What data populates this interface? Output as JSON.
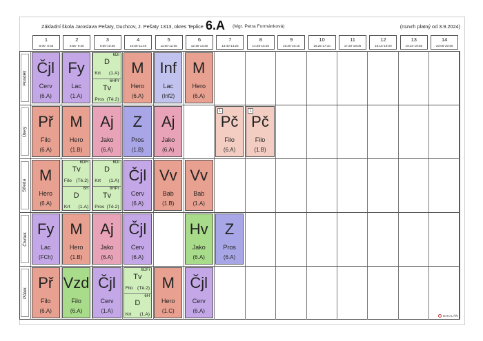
{
  "header": {
    "school": "Základní škola Jaroslava Pešaty, Duchcov, J. Pešaty 1313, okres Teplice",
    "class": "6.A",
    "teacher": "(Mgr. Petra Formánková)",
    "valid": "(rozvrh platný od 3.9.2024)"
  },
  "periods": [
    {
      "num": "1",
      "time": "8:00- 8:45"
    },
    {
      "num": "2",
      "time": "8:55- 9:40"
    },
    {
      "num": "3",
      "time": "9:50-10:35"
    },
    {
      "num": "4",
      "time": "10:55-11:40"
    },
    {
      "num": "5",
      "time": "11:50-12:35"
    },
    {
      "num": "6",
      "time": "12:45-13:30"
    },
    {
      "num": "7",
      "time": "13:40-14:25"
    },
    {
      "num": "8",
      "time": "14:35-15:20"
    },
    {
      "num": "9",
      "time": "15:30-16:15"
    },
    {
      "num": "10",
      "time": "16:25-17:10"
    },
    {
      "num": "11",
      "time": "17:20-18:05"
    },
    {
      "num": "12",
      "time": "18:15-19:00"
    },
    {
      "num": "13",
      "time": "19:10-19:55"
    },
    {
      "num": "14",
      "time": "20:05-20:50"
    }
  ],
  "days": [
    "Pondělí",
    "Úterý",
    "Středa",
    "Čtvrtek",
    "Pátek"
  ],
  "colors": {
    "Cjl": "#c4a7e7",
    "Fy": "#c4a7e7",
    "M": "#e8a090",
    "Inf": "#c2c2ee",
    "Pr": "#e8a090",
    "Aj": "#e9a3b8",
    "Z": "#a9a6e8",
    "Pc": "#f3cdc2",
    "Vv": "#e8a090",
    "Hv": "#a9dc8a",
    "Vzd": "#a9dc8a",
    "TvD": "#cfeebb"
  },
  "lessons": [
    {
      "day": 0,
      "p": 1,
      "sub": "Čjl",
      "tch": "Cerv",
      "rm": "(6.A)",
      "c": "Cjl"
    },
    {
      "day": 0,
      "p": 2,
      "sub": "Fy",
      "tch": "Lac",
      "rm": "(1.A)",
      "c": "Fy"
    },
    {
      "day": 0,
      "p": 3,
      "c": "TvD",
      "split": [
        {
          "grp": "6Di",
          "sub": "D",
          "tch": "Krt",
          "rm": "(1.A)"
        },
        {
          "grp": "6HPr",
          "sub": "Tv",
          "tch": "Pros",
          "rm": "(Tě.2)"
        }
      ]
    },
    {
      "day": 0,
      "p": 4,
      "sub": "M",
      "tch": "Hero",
      "rm": "(6.A)",
      "c": "M"
    },
    {
      "day": 0,
      "p": 5,
      "sub": "Inf",
      "tch": "Lac",
      "rm": "(Inf2)",
      "c": "Inf"
    },
    {
      "day": 0,
      "p": 6,
      "sub": "M",
      "tch": "Hero",
      "rm": "(6.A)",
      "c": "M"
    },
    {
      "day": 1,
      "p": 1,
      "sub": "Př",
      "tch": "Filo",
      "rm": "(6.A)",
      "c": "Pr"
    },
    {
      "day": 1,
      "p": 2,
      "sub": "M",
      "tch": "Hero",
      "rm": "(1.B)",
      "c": "M"
    },
    {
      "day": 1,
      "p": 3,
      "sub": "Aj",
      "tch": "Jako",
      "rm": "(6.A)",
      "c": "Aj"
    },
    {
      "day": 1,
      "p": 4,
      "sub": "Z",
      "tch": "Pros",
      "rm": "(1.B)",
      "c": "Z"
    },
    {
      "day": 1,
      "p": 5,
      "sub": "Aj",
      "tch": "Jako",
      "rm": "(6.A)",
      "c": "Aj"
    },
    {
      "day": 1,
      "p": 7,
      "sub": "Pč",
      "tch": "Filo",
      "rm": "(6.A)",
      "c": "Pc",
      "flag": "L"
    },
    {
      "day": 1,
      "p": 8,
      "sub": "Pč",
      "tch": "Filo",
      "rm": "(1.B)",
      "c": "Pc",
      "flag": "L"
    },
    {
      "day": 2,
      "p": 1,
      "sub": "M",
      "tch": "Hero",
      "rm": "(6.A)",
      "c": "M"
    },
    {
      "day": 2,
      "p": 2,
      "c": "TvD",
      "split": [
        {
          "grp": "6DFi",
          "sub": "Tv",
          "tch": "Filo",
          "rm": "(Tě.2)"
        },
        {
          "grp": "6H",
          "sub": "D",
          "tch": "Krt",
          "rm": "(1.A)"
        }
      ]
    },
    {
      "day": 2,
      "p": 3,
      "c": "TvD",
      "split": [
        {
          "grp": "6Di",
          "sub": "D",
          "tch": "Krt",
          "rm": "(1.A)"
        },
        {
          "grp": "6HPr",
          "sub": "Tv",
          "tch": "Pros",
          "rm": "(Tě.2)"
        }
      ]
    },
    {
      "day": 2,
      "p": 4,
      "sub": "Čjl",
      "tch": "Cerv",
      "rm": "(6.A)",
      "c": "Cjl"
    },
    {
      "day": 2,
      "p": 5,
      "sub": "Vv",
      "tch": "Bab",
      "rm": "(1.B)",
      "c": "Vv"
    },
    {
      "day": 2,
      "p": 6,
      "sub": "Vv",
      "tch": "Bab",
      "rm": "(1.A)",
      "c": "Vv"
    },
    {
      "day": 3,
      "p": 1,
      "sub": "Fy",
      "tch": "Lac",
      "rm": "(FCh)",
      "c": "Fy"
    },
    {
      "day": 3,
      "p": 2,
      "sub": "M",
      "tch": "Hero",
      "rm": "(1.B)",
      "c": "M"
    },
    {
      "day": 3,
      "p": 3,
      "sub": "Aj",
      "tch": "Jako",
      "rm": "(6.A)",
      "c": "Aj"
    },
    {
      "day": 3,
      "p": 4,
      "sub": "Čjl",
      "tch": "Cerv",
      "rm": "(6.A)",
      "c": "Cjl"
    },
    {
      "day": 3,
      "p": 6,
      "sub": "Hv",
      "tch": "Jako",
      "rm": "(6.A)",
      "c": "Hv"
    },
    {
      "day": 3,
      "p": 7,
      "sub": "Z",
      "tch": "Pros",
      "rm": "(6.A)",
      "c": "Z"
    },
    {
      "day": 4,
      "p": 1,
      "sub": "Př",
      "tch": "Filo",
      "rm": "(6.A)",
      "c": "Pr"
    },
    {
      "day": 4,
      "p": 2,
      "sub": "Vzd",
      "tch": "Filo",
      "rm": "(6.A)",
      "c": "Vzd"
    },
    {
      "day": 4,
      "p": 3,
      "sub": "Čjl",
      "tch": "Cerv",
      "rm": "(1.A)",
      "c": "Cjl"
    },
    {
      "day": 4,
      "p": 4,
      "c": "TvD",
      "split": [
        {
          "grp": "6DFi",
          "sub": "Tv",
          "tch": "Filo",
          "rm": "(Tě.2)"
        },
        {
          "grp": "6H",
          "sub": "D",
          "tch": "Krt",
          "rm": "(1.A)"
        }
      ]
    },
    {
      "day": 4,
      "p": 5,
      "sub": "M",
      "tch": "Hero",
      "rm": "(1.C)",
      "c": "M"
    },
    {
      "day": 4,
      "p": 6,
      "sub": "Čjl",
      "tch": "Cerv",
      "rm": "(6.A)",
      "c": "Cjl"
    }
  ],
  "footer": {
    "logo": "BAKALÁŘI"
  }
}
